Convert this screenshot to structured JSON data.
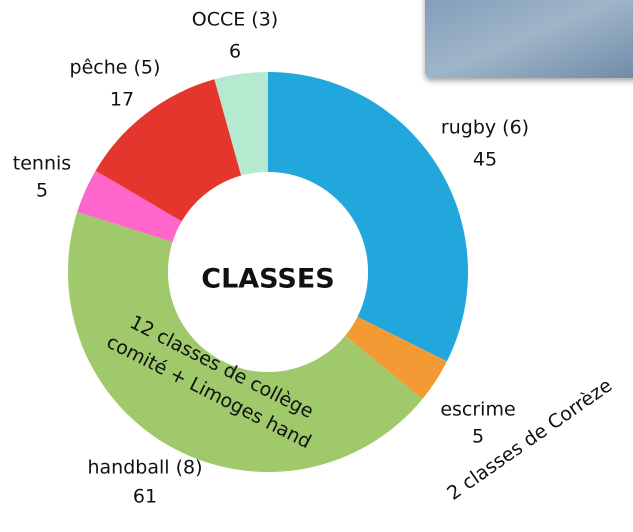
{
  "chart_data": {
    "type": "donut",
    "center_label": "CLASSES",
    "categories": [
      "rugby (6)",
      "escrime",
      "handball (8)",
      "tennis",
      "pêche (5)",
      "OCCE (3)"
    ],
    "values": [
      45,
      5,
      61,
      5,
      17,
      6
    ],
    "colors": [
      "#22a7dd",
      "#f39a34",
      "#9fc96a",
      "#ff66cc",
      "#e5362e",
      "#b6ead0"
    ],
    "annotations": [
      {
        "lines": [
          "12 classes de collège",
          "comité + Limoges hand"
        ]
      },
      {
        "lines": [
          "2 classes de Corrèze"
        ]
      }
    ]
  }
}
